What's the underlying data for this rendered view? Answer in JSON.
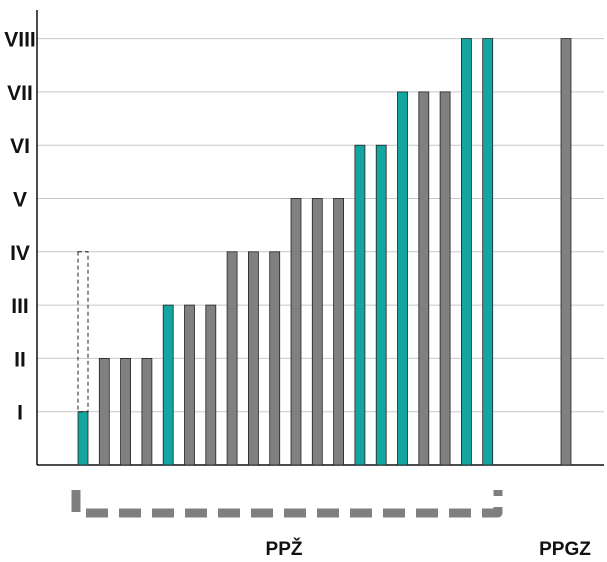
{
  "chart_data": {
    "type": "bar",
    "y_categories": [
      "I",
      "II",
      "III",
      "IV",
      "V",
      "VI",
      "VII",
      "VIII"
    ],
    "ylim": [
      0,
      8
    ],
    "grid": true,
    "colors": {
      "teal": "#14a5a0",
      "gray": "#808080",
      "border": "#222222",
      "dash": "#7f7f7f"
    },
    "groups": [
      {
        "label": "PPŽ",
        "bars": [
          {
            "value": 1,
            "color": "teal",
            "dashed_extension_to": 4
          },
          {
            "value": 2,
            "color": "gray"
          },
          {
            "value": 2,
            "color": "gray"
          },
          {
            "value": 2,
            "color": "gray"
          },
          {
            "value": 3,
            "color": "teal"
          },
          {
            "value": 3,
            "color": "gray"
          },
          {
            "value": 3,
            "color": "gray"
          },
          {
            "value": 4,
            "color": "gray"
          },
          {
            "value": 4,
            "color": "gray"
          },
          {
            "value": 4,
            "color": "gray"
          },
          {
            "value": 5,
            "color": "gray"
          },
          {
            "value": 5,
            "color": "gray"
          },
          {
            "value": 5,
            "color": "gray"
          },
          {
            "value": 6,
            "color": "teal"
          },
          {
            "value": 6,
            "color": "teal"
          },
          {
            "value": 7,
            "color": "teal"
          },
          {
            "value": 7,
            "color": "gray"
          },
          {
            "value": 7,
            "color": "gray"
          },
          {
            "value": 8,
            "color": "teal"
          },
          {
            "value": 8,
            "color": "teal"
          }
        ]
      },
      {
        "label": "PPGZ",
        "bars": [
          {
            "value": 8,
            "color": "gray"
          }
        ]
      }
    ]
  }
}
